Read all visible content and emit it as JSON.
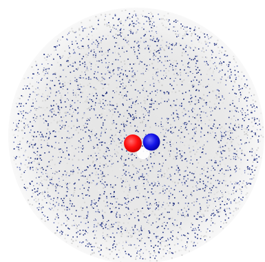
{
  "scene": {
    "background_color": "#ffffff",
    "sphere_haze_color": "#d9d9d9",
    "particle_color": "#1a2a7a",
    "particle_color_alt": "#6a78b8",
    "center_particles": [
      {
        "name": "red-sphere",
        "color": "#ff1010"
      },
      {
        "name": "blue-sphere",
        "color": "#1515e8"
      }
    ]
  }
}
